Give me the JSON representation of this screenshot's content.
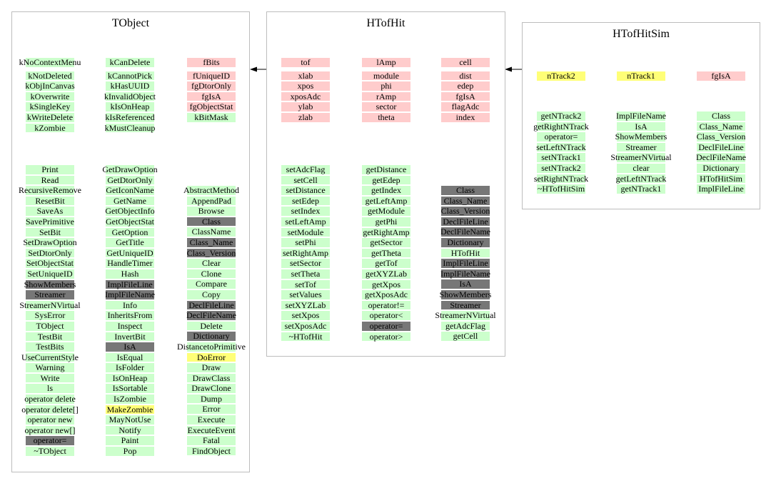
{
  "classes": {
    "tobject": {
      "title": "TObject",
      "data_members": [
        [
          {
            "t": "kNoContextMenu",
            "c": "green"
          },
          {
            "t": "kNotDeleted",
            "c": "green"
          },
          {
            "t": "kObjInCanvas",
            "c": "green"
          },
          {
            "t": "kOverwrite",
            "c": "green"
          },
          {
            "t": "kSingleKey",
            "c": "green"
          },
          {
            "t": "kWriteDelete",
            "c": "green"
          },
          {
            "t": "kZombie",
            "c": "green"
          }
        ],
        [
          {
            "t": "kCanDelete",
            "c": "green"
          },
          {
            "t": "kCannotPick",
            "c": "green"
          },
          {
            "t": "kHasUUID",
            "c": "green"
          },
          {
            "t": "kInvalidObject",
            "c": "green"
          },
          {
            "t": "kIsOnHeap",
            "c": "green"
          },
          {
            "t": "kIsReferenced",
            "c": "green"
          },
          {
            "t": "kMustCleanup",
            "c": "green"
          }
        ],
        [
          {
            "t": "fBits",
            "c": "pink"
          },
          {
            "t": "fUniqueID",
            "c": "pink"
          },
          {
            "t": "fgDtorOnly",
            "c": "pink"
          },
          {
            "t": "fgIsA",
            "c": "pink"
          },
          {
            "t": "fgObjectStat",
            "c": "pink"
          },
          {
            "t": "kBitMask",
            "c": "green"
          }
        ]
      ],
      "methods": [
        [
          {
            "t": "Print",
            "c": "green"
          },
          {
            "t": "Read",
            "c": "green"
          },
          {
            "t": "RecursiveRemove",
            "c": "green"
          },
          {
            "t": "ResetBit",
            "c": "green"
          },
          {
            "t": "SaveAs",
            "c": "green"
          },
          {
            "t": "SavePrimitive",
            "c": "green"
          },
          {
            "t": "SetBit",
            "c": "green"
          },
          {
            "t": "SetDrawOption",
            "c": "green"
          },
          {
            "t": "SetDtorOnly",
            "c": "green"
          },
          {
            "t": "SetObjectStat",
            "c": "green"
          },
          {
            "t": "SetUniqueID",
            "c": "green"
          },
          {
            "t": "ShowMembers",
            "c": "gray"
          },
          {
            "t": "Streamer",
            "c": "gray"
          },
          {
            "t": "StreamerNVirtual",
            "c": "green"
          },
          {
            "t": "SysError",
            "c": "green"
          },
          {
            "t": "TObject",
            "c": "green"
          },
          {
            "t": "TestBit",
            "c": "green"
          },
          {
            "t": "TestBits",
            "c": "green"
          },
          {
            "t": "UseCurrentStyle",
            "c": "green"
          },
          {
            "t": "Warning",
            "c": "green"
          },
          {
            "t": "Write",
            "c": "green"
          },
          {
            "t": "ls",
            "c": "green"
          },
          {
            "t": "operator delete",
            "c": "green"
          },
          {
            "t": "operator delete[]",
            "c": "green"
          },
          {
            "t": "operator new",
            "c": "green"
          },
          {
            "t": "operator new[]",
            "c": "green"
          },
          {
            "t": "operator=",
            "c": "gray"
          },
          {
            "t": "~TObject",
            "c": "green"
          }
        ],
        [
          {
            "t": "GetDrawOption",
            "c": "green"
          },
          {
            "t": "GetDtorOnly",
            "c": "green"
          },
          {
            "t": "GetIconName",
            "c": "green"
          },
          {
            "t": "GetName",
            "c": "green"
          },
          {
            "t": "GetObjectInfo",
            "c": "green"
          },
          {
            "t": "GetObjectStat",
            "c": "green"
          },
          {
            "t": "GetOption",
            "c": "green"
          },
          {
            "t": "GetTitle",
            "c": "green"
          },
          {
            "t": "GetUniqueID",
            "c": "green"
          },
          {
            "t": "HandleTimer",
            "c": "green"
          },
          {
            "t": "Hash",
            "c": "green"
          },
          {
            "t": "ImplFileLine",
            "c": "gray"
          },
          {
            "t": "ImplFileName",
            "c": "gray"
          },
          {
            "t": "Info",
            "c": "green"
          },
          {
            "t": "InheritsFrom",
            "c": "green"
          },
          {
            "t": "Inspect",
            "c": "green"
          },
          {
            "t": "InvertBit",
            "c": "green"
          },
          {
            "t": "IsA",
            "c": "gray"
          },
          {
            "t": "IsEqual",
            "c": "green"
          },
          {
            "t": "IsFolder",
            "c": "green"
          },
          {
            "t": "IsOnHeap",
            "c": "green"
          },
          {
            "t": "IsSortable",
            "c": "green"
          },
          {
            "t": "IsZombie",
            "c": "green"
          },
          {
            "t": "MakeZombie",
            "c": "yellow"
          },
          {
            "t": "MayNotUse",
            "c": "green"
          },
          {
            "t": "Notify",
            "c": "green"
          },
          {
            "t": "Paint",
            "c": "green"
          },
          {
            "t": "Pop",
            "c": "green"
          }
        ],
        [
          {
            "t": "AbstractMethod",
            "c": "green"
          },
          {
            "t": "AppendPad",
            "c": "green"
          },
          {
            "t": "Browse",
            "c": "green"
          },
          {
            "t": "Class",
            "c": "gray"
          },
          {
            "t": "ClassName",
            "c": "green"
          },
          {
            "t": "Class_Name",
            "c": "gray"
          },
          {
            "t": "Class_Version",
            "c": "gray"
          },
          {
            "t": "Clear",
            "c": "green"
          },
          {
            "t": "Clone",
            "c": "green"
          },
          {
            "t": "Compare",
            "c": "green"
          },
          {
            "t": "Copy",
            "c": "green"
          },
          {
            "t": "DeclFileLine",
            "c": "gray"
          },
          {
            "t": "DeclFileName",
            "c": "gray"
          },
          {
            "t": "Delete",
            "c": "green"
          },
          {
            "t": "Dictionary",
            "c": "gray"
          },
          {
            "t": "DistancetoPrimitive",
            "c": "green"
          },
          {
            "t": "DoError",
            "c": "yellow"
          },
          {
            "t": "Draw",
            "c": "green"
          },
          {
            "t": "DrawClass",
            "c": "green"
          },
          {
            "t": "DrawClone",
            "c": "green"
          },
          {
            "t": "Dump",
            "c": "green"
          },
          {
            "t": "Error",
            "c": "green"
          },
          {
            "t": "Execute",
            "c": "green"
          },
          {
            "t": "ExecuteEvent",
            "c": "green"
          },
          {
            "t": "Fatal",
            "c": "green"
          },
          {
            "t": "FindObject",
            "c": "green"
          }
        ]
      ]
    },
    "htofhit": {
      "title": "HTofHit",
      "data_members": [
        [
          {
            "t": "tof",
            "c": "pink"
          },
          {
            "t": "xlab",
            "c": "pink"
          },
          {
            "t": "xpos",
            "c": "pink"
          },
          {
            "t": "xposAdc",
            "c": "pink"
          },
          {
            "t": "ylab",
            "c": "pink"
          },
          {
            "t": "zlab",
            "c": "pink"
          }
        ],
        [
          {
            "t": "lAmp",
            "c": "pink"
          },
          {
            "t": "module",
            "c": "pink"
          },
          {
            "t": "phi",
            "c": "pink"
          },
          {
            "t": "rAmp",
            "c": "pink"
          },
          {
            "t": "sector",
            "c": "pink"
          },
          {
            "t": "theta",
            "c": "pink"
          }
        ],
        [
          {
            "t": "cell",
            "c": "pink"
          },
          {
            "t": "dist",
            "c": "pink"
          },
          {
            "t": "edep",
            "c": "pink"
          },
          {
            "t": "fgIsA",
            "c": "pink"
          },
          {
            "t": "flagAdc",
            "c": "pink"
          },
          {
            "t": "index",
            "c": "pink"
          }
        ]
      ],
      "methods": [
        [
          {
            "t": "setAdcFlag",
            "c": "green"
          },
          {
            "t": "setCell",
            "c": "green"
          },
          {
            "t": "setDistance",
            "c": "green"
          },
          {
            "t": "setEdep",
            "c": "green"
          },
          {
            "t": "setIndex",
            "c": "green"
          },
          {
            "t": "setLeftAmp",
            "c": "green"
          },
          {
            "t": "setModule",
            "c": "green"
          },
          {
            "t": "setPhi",
            "c": "green"
          },
          {
            "t": "setRightAmp",
            "c": "green"
          },
          {
            "t": "setSector",
            "c": "green"
          },
          {
            "t": "setTheta",
            "c": "green"
          },
          {
            "t": "setTof",
            "c": "green"
          },
          {
            "t": "setValues",
            "c": "green"
          },
          {
            "t": "setXYZLab",
            "c": "green"
          },
          {
            "t": "setXpos",
            "c": "green"
          },
          {
            "t": "setXposAdc",
            "c": "green"
          },
          {
            "t": "~HTofHit",
            "c": "green"
          }
        ],
        [
          {
            "t": "getDistance",
            "c": "green"
          },
          {
            "t": "getEdep",
            "c": "green"
          },
          {
            "t": "getIndex",
            "c": "green"
          },
          {
            "t": "getLeftAmp",
            "c": "green"
          },
          {
            "t": "getModule",
            "c": "green"
          },
          {
            "t": "getPhi",
            "c": "green"
          },
          {
            "t": "getRightAmp",
            "c": "green"
          },
          {
            "t": "getSector",
            "c": "green"
          },
          {
            "t": "getTheta",
            "c": "green"
          },
          {
            "t": "getTof",
            "c": "green"
          },
          {
            "t": "getXYZLab",
            "c": "green"
          },
          {
            "t": "getXpos",
            "c": "green"
          },
          {
            "t": "getXposAdc",
            "c": "green"
          },
          {
            "t": "operator!=",
            "c": "green"
          },
          {
            "t": "operator<",
            "c": "green"
          },
          {
            "t": "operator=",
            "c": "gray"
          },
          {
            "t": "operator>",
            "c": "green"
          }
        ],
        [
          {
            "t": "Class",
            "c": "gray"
          },
          {
            "t": "Class_Name",
            "c": "gray"
          },
          {
            "t": "Class_Version",
            "c": "gray"
          },
          {
            "t": "DeclFileLine",
            "c": "gray"
          },
          {
            "t": "DeclFileName",
            "c": "gray"
          },
          {
            "t": "Dictionary",
            "c": "gray"
          },
          {
            "t": "HTofHit",
            "c": "green"
          },
          {
            "t": "ImplFileLine",
            "c": "gray"
          },
          {
            "t": "ImplFileName",
            "c": "gray"
          },
          {
            "t": "IsA",
            "c": "gray"
          },
          {
            "t": "ShowMembers",
            "c": "gray"
          },
          {
            "t": "Streamer",
            "c": "gray"
          },
          {
            "t": "StreamerNVirtual",
            "c": "green"
          },
          {
            "t": "getAdcFlag",
            "c": "green"
          },
          {
            "t": "getCell",
            "c": "green"
          }
        ]
      ]
    },
    "htofhitsim": {
      "title": "HTofHitSim",
      "data_members": [
        [
          {
            "t": "nTrack2",
            "c": "yellow"
          }
        ],
        [
          {
            "t": "nTrack1",
            "c": "yellow"
          }
        ],
        [
          {
            "t": "fgIsA",
            "c": "pink"
          }
        ]
      ],
      "methods": [
        [
          {
            "t": "getNTrack2",
            "c": "green"
          },
          {
            "t": "getRightNTrack",
            "c": "green"
          },
          {
            "t": "operator=",
            "c": "green"
          },
          {
            "t": "setLeftNTrack",
            "c": "green"
          },
          {
            "t": "setNTrack1",
            "c": "green"
          },
          {
            "t": "setNTrack2",
            "c": "green"
          },
          {
            "t": "setRightNTrack",
            "c": "green"
          },
          {
            "t": "~HTofHitSim",
            "c": "green"
          }
        ],
        [
          {
            "t": "ImplFileName",
            "c": "green"
          },
          {
            "t": "IsA",
            "c": "green"
          },
          {
            "t": "ShowMembers",
            "c": "green"
          },
          {
            "t": "Streamer",
            "c": "green"
          },
          {
            "t": "StreamerNVirtual",
            "c": "green"
          },
          {
            "t": "clear",
            "c": "green"
          },
          {
            "t": "getLeftNTrack",
            "c": "green"
          },
          {
            "t": "getNTrack1",
            "c": "green"
          }
        ],
        [
          {
            "t": "Class",
            "c": "green"
          },
          {
            "t": "Class_Name",
            "c": "green"
          },
          {
            "t": "Class_Version",
            "c": "green"
          },
          {
            "t": "DeclFileLine",
            "c": "green"
          },
          {
            "t": "DeclFileName",
            "c": "green"
          },
          {
            "t": "Dictionary",
            "c": "green"
          },
          {
            "t": "HTofHitSim",
            "c": "green"
          },
          {
            "t": "ImplFileLine",
            "c": "green"
          }
        ]
      ]
    }
  },
  "colors": {
    "green": "#ccffcc",
    "pink": "#ffcccc",
    "yellow": "#ffff77",
    "gray": "#777777",
    "box_border": "#bdbdbd"
  }
}
